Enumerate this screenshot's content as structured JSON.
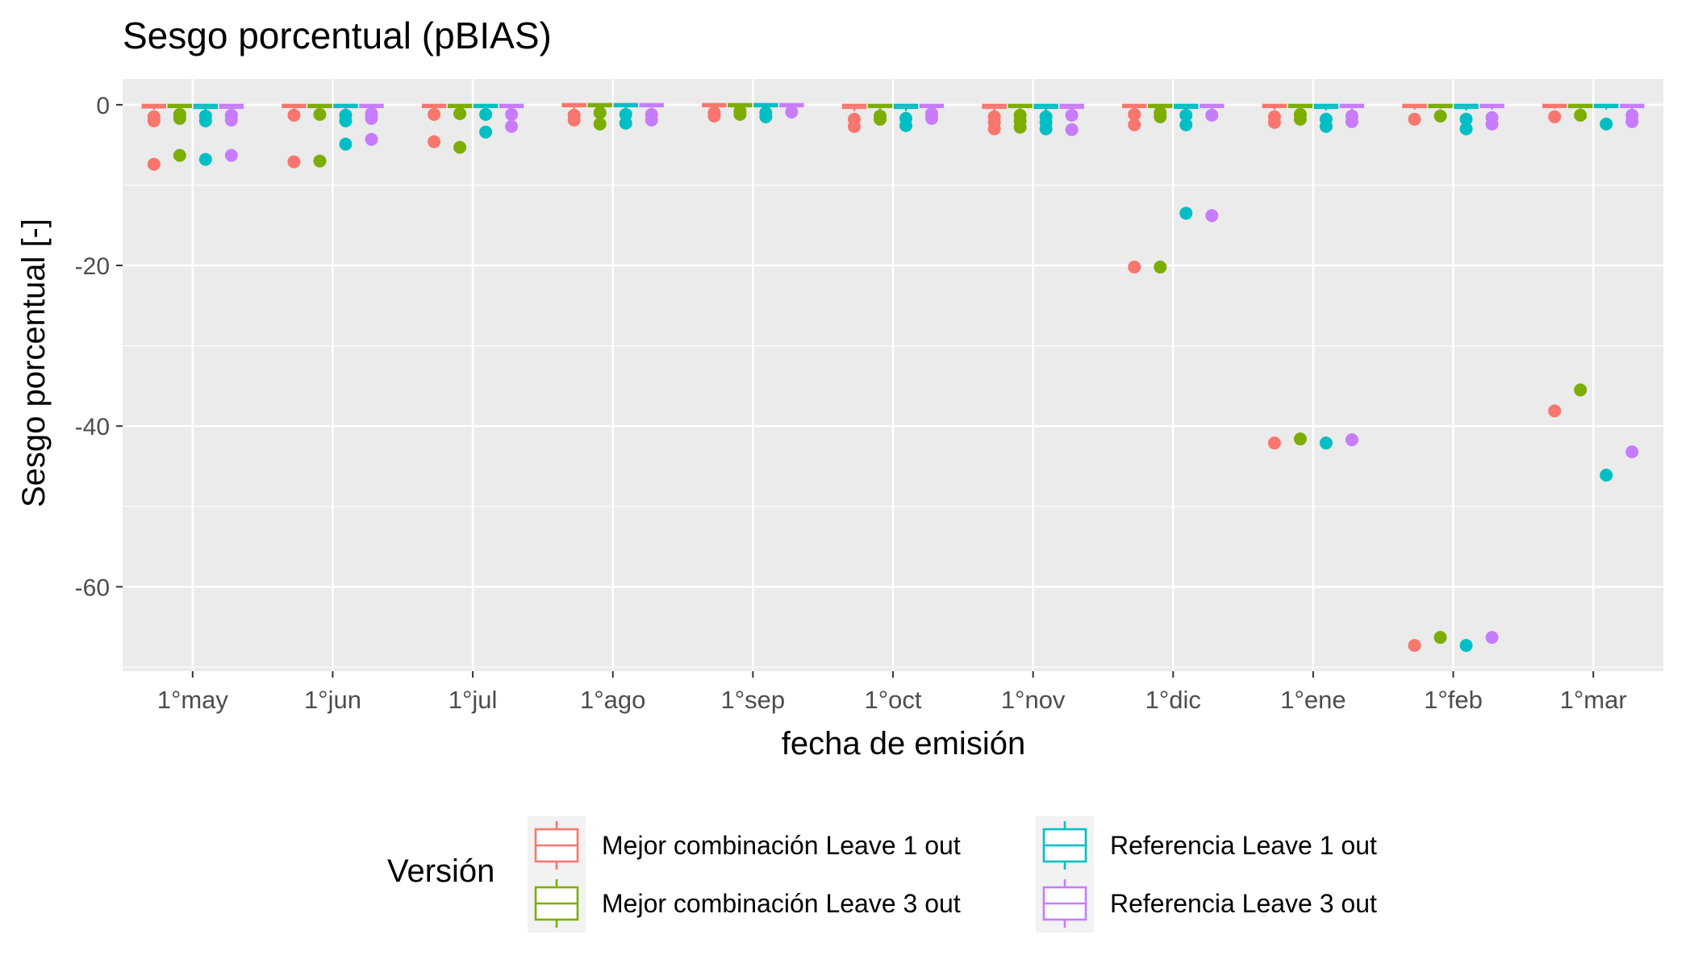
{
  "chart_data": {
    "type": "box",
    "title": "Sesgo porcentual (pBIAS)",
    "xlabel": "fecha de emisión",
    "ylabel": "Sesgo porcentual [-]",
    "ylim": [
      -70.5,
      3.2
    ],
    "yticks": [
      0,
      -20,
      -40,
      -60
    ],
    "grid": true,
    "legend": {
      "title": "Versión",
      "position": "bottom"
    },
    "categories": [
      "1°may",
      "1°jun",
      "1°jul",
      "1°ago",
      "1°sep",
      "1°oct",
      "1°nov",
      "1°dic",
      "1°ene",
      "1°feb",
      "1°mar"
    ],
    "series": [
      {
        "name": "Mejor combinación Leave 1 out",
        "color": "#F8766D",
        "box": [
          {
            "min": -0.6,
            "q1": -0.35,
            "median": -0.1,
            "q3": 0.0,
            "max": 0.0
          },
          {
            "min": -0.6,
            "q1": -0.3,
            "median": -0.1,
            "q3": 0.0,
            "max": 0.0
          },
          {
            "min": -0.6,
            "q1": -0.3,
            "median": -0.1,
            "q3": 0.0,
            "max": 0.0
          },
          {
            "min": -0.5,
            "q1": -0.2,
            "median": -0.05,
            "q3": 0.1,
            "max": 0.2
          },
          {
            "min": -0.5,
            "q1": -0.2,
            "median": -0.05,
            "q3": 0.1,
            "max": 0.2
          },
          {
            "min": -0.8,
            "q1": -0.4,
            "median": -0.1,
            "q3": 0.0,
            "max": 0.0
          },
          {
            "min": -0.8,
            "q1": -0.4,
            "median": -0.1,
            "q3": 0.0,
            "max": 0.0
          },
          {
            "min": -0.6,
            "q1": -0.3,
            "median": -0.1,
            "q3": 0.0,
            "max": 0.0
          },
          {
            "min": -0.6,
            "q1": -0.3,
            "median": -0.1,
            "q3": 0.0,
            "max": 0.0
          },
          {
            "min": -0.6,
            "q1": -0.3,
            "median": -0.1,
            "q3": 0.0,
            "max": 0.0
          },
          {
            "min": -0.5,
            "q1": -0.3,
            "median": -0.1,
            "q3": 0.0,
            "max": 0.0
          }
        ],
        "outliers": [
          [
            -7.4,
            -2.0,
            -1.5
          ],
          [
            -7.1,
            -1.3
          ],
          [
            -4.6,
            -1.2
          ],
          [
            -1.9,
            -1.3
          ],
          [
            -1.4,
            -1.0
          ],
          [
            -2.7,
            -1.8
          ],
          [
            -3.0,
            -2.2,
            -1.5
          ],
          [
            -20.2,
            -2.5,
            -1.2
          ],
          [
            -42.1,
            -2.2,
            -1.5
          ],
          [
            -67.3,
            -1.8
          ],
          [
            -38.1,
            -1.5
          ]
        ]
      },
      {
        "name": "Mejor combinación Leave 3 out",
        "color": "#7CAE00",
        "box": [
          {
            "min": -0.6,
            "q1": -0.3,
            "median": -0.1,
            "q3": 0.0,
            "max": 0.0
          },
          {
            "min": -0.5,
            "q1": -0.3,
            "median": -0.1,
            "q3": 0.0,
            "max": 0.0
          },
          {
            "min": -0.5,
            "q1": -0.3,
            "median": -0.1,
            "q3": 0.0,
            "max": 0.0
          },
          {
            "min": -0.4,
            "q1": -0.2,
            "median": -0.05,
            "q3": 0.1,
            "max": 0.2
          },
          {
            "min": -0.4,
            "q1": -0.2,
            "median": -0.05,
            "q3": 0.1,
            "max": 0.2
          },
          {
            "min": -0.6,
            "q1": -0.3,
            "median": -0.1,
            "q3": 0.0,
            "max": 0.0
          },
          {
            "min": -0.6,
            "q1": -0.3,
            "median": -0.1,
            "q3": 0.0,
            "max": 0.0
          },
          {
            "min": -0.5,
            "q1": -0.3,
            "median": -0.1,
            "q3": 0.0,
            "max": 0.0
          },
          {
            "min": -0.5,
            "q1": -0.3,
            "median": -0.1,
            "q3": 0.0,
            "max": 0.0
          },
          {
            "min": -0.5,
            "q1": -0.3,
            "median": -0.1,
            "q3": 0.0,
            "max": 0.0
          },
          {
            "min": -0.5,
            "q1": -0.3,
            "median": -0.1,
            "q3": 0.0,
            "max": 0.0
          }
        ],
        "outliers": [
          [
            -6.3,
            -1.7,
            -1.2
          ],
          [
            -7.0,
            -1.2
          ],
          [
            -5.3,
            -1.1
          ],
          [
            -2.4,
            -1.0
          ],
          [
            -1.2,
            -0.8
          ],
          [
            -1.8,
            -1.4
          ],
          [
            -2.8,
            -2.0,
            -1.3
          ],
          [
            -20.2,
            -1.5,
            -1.0
          ],
          [
            -41.6,
            -1.8,
            -1.2
          ],
          [
            -66.3,
            -1.4
          ],
          [
            -35.5,
            -1.3
          ]
        ]
      },
      {
        "name": "Referencia Leave 1 out",
        "color": "#00BFC4",
        "box": [
          {
            "min": -0.7,
            "q1": -0.4,
            "median": -0.1,
            "q3": 0.0,
            "max": 0.0
          },
          {
            "min": -0.6,
            "q1": -0.3,
            "median": -0.1,
            "q3": 0.0,
            "max": 0.0
          },
          {
            "min": -0.6,
            "q1": -0.3,
            "median": -0.1,
            "q3": 0.0,
            "max": 0.0
          },
          {
            "min": -0.5,
            "q1": -0.2,
            "median": -0.05,
            "q3": 0.1,
            "max": 0.2
          },
          {
            "min": -0.5,
            "q1": -0.2,
            "median": -0.05,
            "q3": 0.1,
            "max": 0.2
          },
          {
            "min": -0.8,
            "q1": -0.4,
            "median": -0.1,
            "q3": 0.0,
            "max": 0.0
          },
          {
            "min": -0.8,
            "q1": -0.4,
            "median": -0.1,
            "q3": 0.0,
            "max": 0.0
          },
          {
            "min": -0.7,
            "q1": -0.4,
            "median": -0.1,
            "q3": 0.0,
            "max": 0.0
          },
          {
            "min": -0.7,
            "q1": -0.4,
            "median": -0.1,
            "q3": 0.0,
            "max": 0.0
          },
          {
            "min": -0.7,
            "q1": -0.4,
            "median": -0.1,
            "q3": 0.0,
            "max": 0.0
          },
          {
            "min": -0.6,
            "q1": -0.3,
            "median": -0.1,
            "q3": 0.0,
            "max": 0.0
          }
        ],
        "outliers": [
          [
            -6.8,
            -2.0,
            -1.4
          ],
          [
            -4.9,
            -2.0,
            -1.3
          ],
          [
            -3.4,
            -1.2
          ],
          [
            -2.3,
            -1.2
          ],
          [
            -1.5,
            -1.0
          ],
          [
            -2.6,
            -1.7
          ],
          [
            -3.0,
            -2.2,
            -1.5
          ],
          [
            -13.5,
            -2.5,
            -1.3
          ],
          [
            -42.1,
            -2.7,
            -1.8
          ],
          [
            -67.3,
            -3.0,
            -1.8
          ],
          [
            -46.1,
            -2.4
          ]
        ]
      },
      {
        "name": "Referencia Leave 3 out",
        "color": "#C77CFF",
        "box": [
          {
            "min": -0.6,
            "q1": -0.4,
            "median": -0.1,
            "q3": 0.0,
            "max": 0.0
          },
          {
            "min": -0.6,
            "q1": -0.3,
            "median": -0.1,
            "q3": 0.0,
            "max": 0.0
          },
          {
            "min": -0.6,
            "q1": -0.3,
            "median": -0.1,
            "q3": 0.0,
            "max": 0.0
          },
          {
            "min": -0.5,
            "q1": -0.2,
            "median": -0.05,
            "q3": 0.1,
            "max": 0.2
          },
          {
            "min": -0.4,
            "q1": -0.2,
            "median": -0.05,
            "q3": 0.1,
            "max": 0.2
          },
          {
            "min": -0.6,
            "q1": -0.3,
            "median": -0.1,
            "q3": 0.0,
            "max": 0.0
          },
          {
            "min": -0.7,
            "q1": -0.4,
            "median": -0.1,
            "q3": 0.0,
            "max": 0.0
          },
          {
            "min": -0.6,
            "q1": -0.3,
            "median": -0.1,
            "q3": 0.0,
            "max": 0.0
          },
          {
            "min": -0.6,
            "q1": -0.3,
            "median": -0.1,
            "q3": 0.0,
            "max": 0.0
          },
          {
            "min": -0.6,
            "q1": -0.3,
            "median": -0.1,
            "q3": 0.0,
            "max": 0.0
          },
          {
            "min": -0.6,
            "q1": -0.3,
            "median": -0.1,
            "q3": 0.0,
            "max": 0.0
          }
        ],
        "outliers": [
          [
            -6.3,
            -1.9,
            -1.3
          ],
          [
            -4.3,
            -1.7,
            -1.1
          ],
          [
            -2.7,
            -1.2
          ],
          [
            -1.9,
            -1.2
          ],
          [
            -0.9
          ],
          [
            -1.7,
            -1.1
          ],
          [
            -3.1,
            -1.3
          ],
          [
            -13.8,
            -1.3
          ],
          [
            -41.7,
            -2.1,
            -1.4
          ],
          [
            -66.3,
            -2.4,
            -1.6
          ],
          [
            -43.2,
            -2.1,
            -1.3
          ]
        ]
      }
    ]
  }
}
